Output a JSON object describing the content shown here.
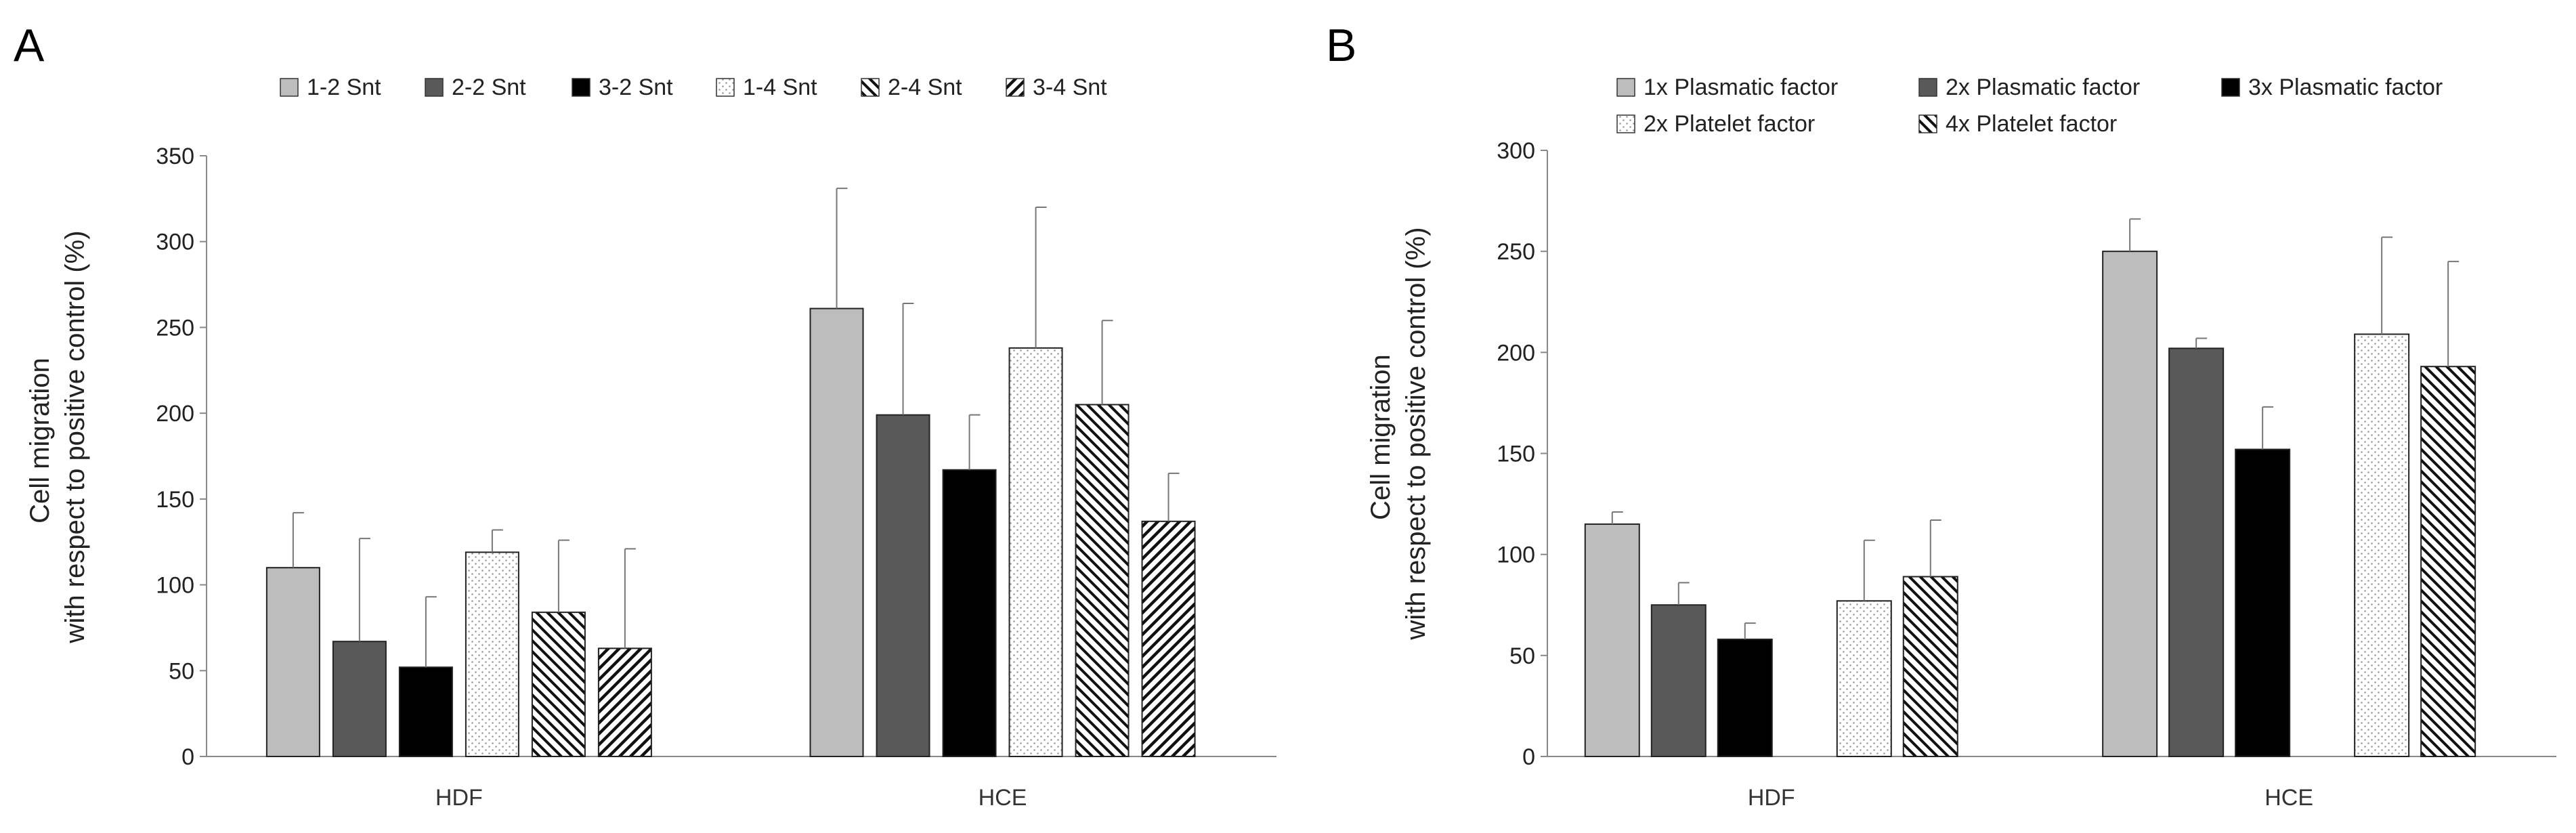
{
  "chart_data": [
    {
      "type": "bar",
      "panel_label": "A",
      "ylabel_lines": [
        "Cell migration",
        "with respect to positive control (%)"
      ],
      "ylim": [
        0,
        350
      ],
      "yticks": [
        0,
        50,
        100,
        150,
        200,
        250,
        300,
        350
      ],
      "categories": [
        "HDF",
        "HCE"
      ],
      "series": [
        {
          "name": "1-2 Snt",
          "pattern": "light-gray",
          "values": [
            110,
            261
          ],
          "errors": [
            32,
            70
          ]
        },
        {
          "name": "2-2 Snt",
          "pattern": "dark-gray",
          "values": [
            67,
            199
          ],
          "errors": [
            60,
            65
          ]
        },
        {
          "name": "3-2 Snt",
          "pattern": "black",
          "values": [
            52,
            167
          ],
          "errors": [
            41,
            32
          ]
        },
        {
          "name": "1-4 Snt",
          "pattern": "dots",
          "values": [
            119,
            238
          ],
          "errors": [
            13,
            82
          ]
        },
        {
          "name": "2-4 Snt",
          "pattern": "backslash",
          "values": [
            84,
            205
          ],
          "errors": [
            42,
            49
          ]
        },
        {
          "name": "3-4 Snt",
          "pattern": "slash",
          "values": [
            63,
            137
          ],
          "errors": [
            58,
            28
          ]
        }
      ]
    },
    {
      "type": "bar",
      "panel_label": "B",
      "ylabel_lines": [
        "Cell migration",
        "with respect to positive control (%)"
      ],
      "ylim": [
        0,
        300
      ],
      "yticks": [
        0,
        50,
        100,
        150,
        200,
        250,
        300
      ],
      "categories": [
        "HDF",
        "HCE"
      ],
      "series": [
        {
          "name": "1x Plasmatic factor",
          "pattern": "light-gray",
          "values": [
            115,
            250
          ],
          "errors": [
            6,
            16
          ]
        },
        {
          "name": "2x Plasmatic factor",
          "pattern": "dark-gray",
          "values": [
            75,
            202
          ],
          "errors": [
            11,
            5
          ]
        },
        {
          "name": "3x Plasmatic factor",
          "pattern": "black",
          "values": [
            58,
            152
          ],
          "errors": [
            8,
            21
          ]
        },
        {
          "name": "2x Platelet factor",
          "pattern": "dots",
          "values": [
            77,
            209
          ],
          "errors": [
            30,
            48
          ]
        },
        {
          "name": "4x Platelet factor",
          "pattern": "backslash",
          "values": [
            89,
            193
          ],
          "errors": [
            28,
            52
          ]
        }
      ]
    }
  ]
}
